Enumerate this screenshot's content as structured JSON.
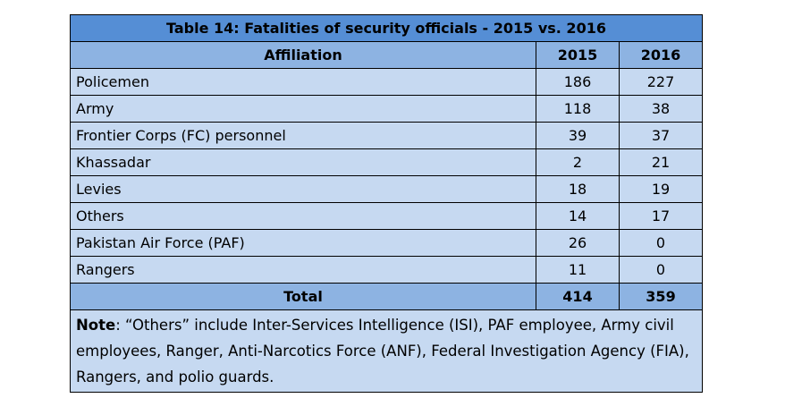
{
  "table": {
    "title": "Table 14: Fatalities of security officials - 2015 vs. 2016",
    "headers": [
      "Affiliation",
      "2015",
      "2016"
    ],
    "rows": [
      {
        "affiliation": "Policemen",
        "y2015": "186",
        "y2016": "227"
      },
      {
        "affiliation": "Army",
        "y2015": "118",
        "y2016": "38"
      },
      {
        "affiliation": "Frontier Corps (FC) personnel",
        "y2015": "39",
        "y2016": "37"
      },
      {
        "affiliation": "Khassadar",
        "y2015": "2",
        "y2016": "21"
      },
      {
        "affiliation": "Levies",
        "y2015": "18",
        "y2016": "19"
      },
      {
        "affiliation": "Others",
        "y2015": "14",
        "y2016": "17"
      },
      {
        "affiliation": "Pakistan Air Force (PAF)",
        "y2015": "26",
        "y2016": "0"
      },
      {
        "affiliation": "Rangers",
        "y2015": "11",
        "y2016": "0"
      }
    ],
    "total": {
      "label": "Total",
      "y2015": "414",
      "y2016": "359"
    },
    "note_label": "Note",
    "note_text": ": “Others” include Inter-Services Intelligence (ISI), PAF employee, Army civil employees, Ranger, Anti-Narcotics Force (ANF), Federal Investigation Agency (FIA), Rangers, and polio guards."
  },
  "colors": {
    "title_bg": "#558ed5",
    "header_bg": "#8db3e2",
    "body_bg": "#c6d9f1"
  }
}
